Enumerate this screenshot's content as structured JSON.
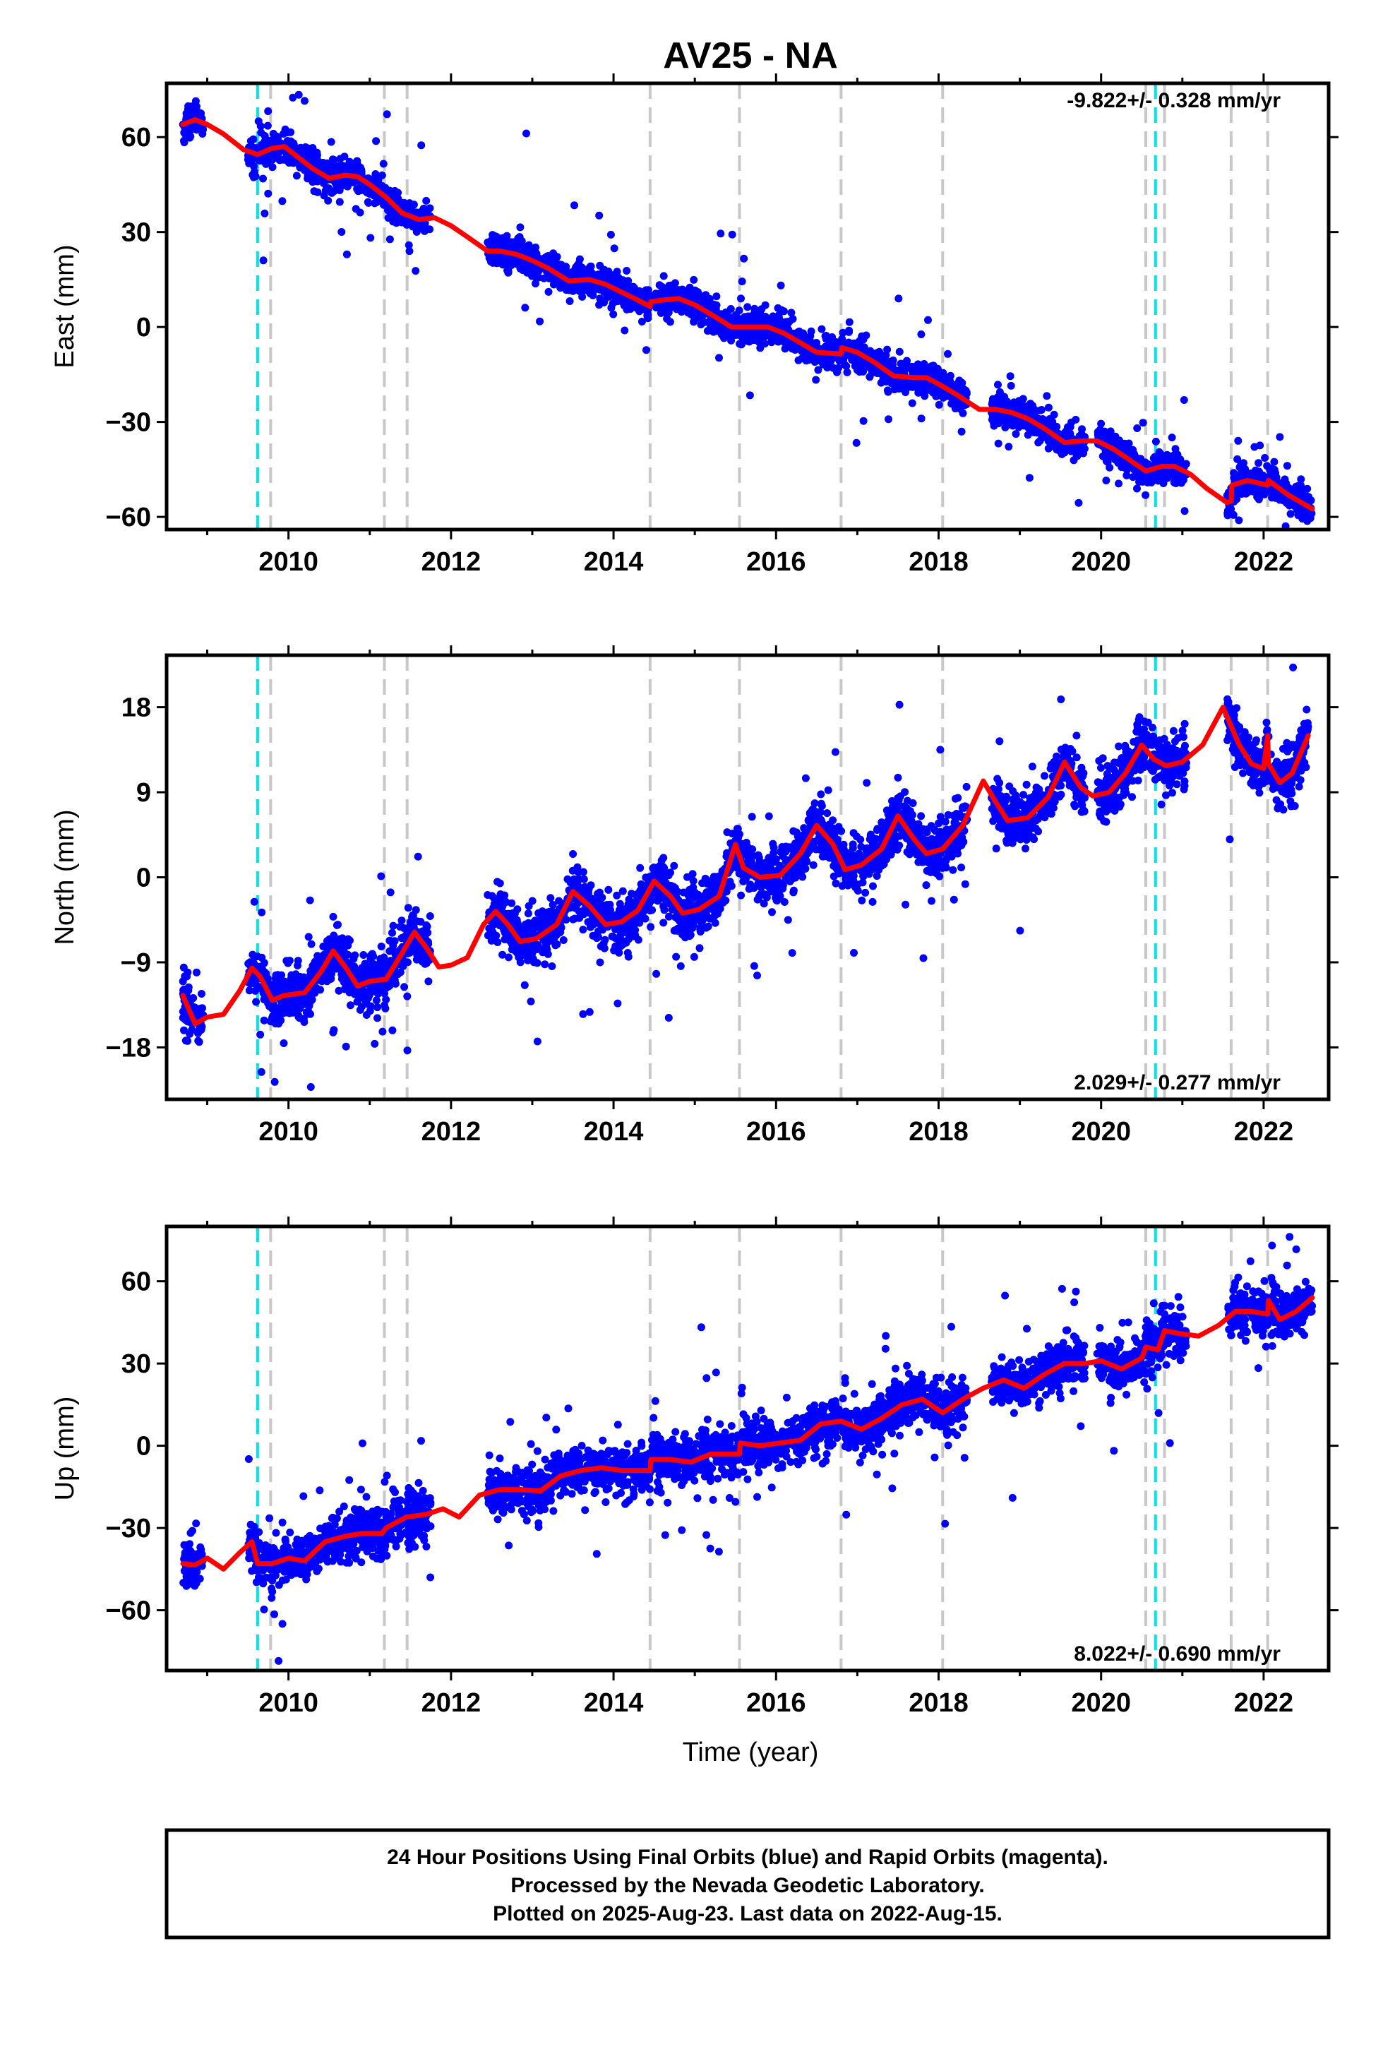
{
  "chart_data": {
    "type": "scatter",
    "title": "AV25 - NA",
    "xlabel": "Time (year)",
    "xlim": [
      2008.5,
      2022.8
    ],
    "x_ticks": [
      "2010",
      "2012",
      "2014",
      "2016",
      "2018",
      "2020",
      "2022"
    ],
    "colors": {
      "points": "#0000ff",
      "model": "#ff0000",
      "event_grey": "#c8c8c8",
      "event_cyan": "#00e5ee"
    },
    "event_lines": {
      "grey": [
        2009.78,
        2011.18,
        2011.46,
        2014.45,
        2015.55,
        2016.8,
        2018.05,
        2020.55,
        2020.78,
        2021.6,
        2022.05
      ],
      "cyan": [
        2009.62,
        2020.67
      ]
    },
    "panels": [
      {
        "ylabel": "East (mm)",
        "ylim": [
          -64,
          77
        ],
        "yticks": [
          "60",
          "30",
          "0",
          "−30",
          "−60"
        ],
        "ytick_values": [
          60,
          30,
          0,
          -30,
          -60
        ],
        "rate_label": "-9.822+/- 0.328 mm/yr",
        "rate_position": "top-right",
        "model": [
          [
            2008.7,
            64
          ],
          [
            2008.85,
            65.5
          ],
          [
            2009.0,
            64
          ],
          [
            2009.2,
            61
          ],
          [
            2009.45,
            56
          ],
          [
            2009.62,
            54.5
          ],
          [
            2009.8,
            56.5
          ],
          [
            2009.95,
            57
          ],
          [
            2010.1,
            54
          ],
          [
            2010.3,
            50
          ],
          [
            2010.5,
            47
          ],
          [
            2010.7,
            48
          ],
          [
            2010.85,
            47.5
          ],
          [
            2011.0,
            45
          ],
          [
            2011.2,
            41
          ],
          [
            2011.4,
            36
          ],
          [
            2011.6,
            34
          ],
          [
            2011.8,
            34.5
          ],
          [
            2012.0,
            32
          ],
          [
            2012.2,
            28.5
          ],
          [
            2012.45,
            24
          ],
          [
            2012.6,
            24
          ],
          [
            2012.8,
            23
          ],
          [
            2013.0,
            21
          ],
          [
            2013.2,
            18.5
          ],
          [
            2013.45,
            14.5
          ],
          [
            2013.7,
            15
          ],
          [
            2013.9,
            13.5
          ],
          [
            2014.1,
            11
          ],
          [
            2014.3,
            8.5
          ],
          [
            2014.45,
            6.5
          ],
          [
            2014.46,
            8
          ],
          [
            2014.6,
            8.5
          ],
          [
            2014.8,
            9
          ],
          [
            2015.0,
            7
          ],
          [
            2015.2,
            4
          ],
          [
            2015.45,
            0
          ],
          [
            2015.7,
            0
          ],
          [
            2015.9,
            0
          ],
          [
            2016.1,
            -2
          ],
          [
            2016.3,
            -5
          ],
          [
            2016.5,
            -8
          ],
          [
            2016.8,
            -8.5
          ],
          [
            2016.81,
            -6.5
          ],
          [
            2017.0,
            -8
          ],
          [
            2017.2,
            -11
          ],
          [
            2017.45,
            -15.5
          ],
          [
            2017.7,
            -16
          ],
          [
            2017.85,
            -16
          ],
          [
            2018.0,
            -18
          ],
          [
            2018.2,
            -21
          ],
          [
            2018.5,
            -26
          ],
          [
            2018.7,
            -26
          ],
          [
            2018.9,
            -27
          ],
          [
            2019.1,
            -29
          ],
          [
            2019.3,
            -32
          ],
          [
            2019.55,
            -36.5
          ],
          [
            2019.75,
            -36
          ],
          [
            2019.95,
            -36
          ],
          [
            2020.15,
            -38.5
          ],
          [
            2020.35,
            -42
          ],
          [
            2020.55,
            -45.5
          ],
          [
            2020.75,
            -44
          ],
          [
            2020.9,
            -44
          ],
          [
            2021.1,
            -46.5
          ],
          [
            2021.3,
            -51
          ],
          [
            2021.55,
            -55.5
          ],
          [
            2021.6,
            -55
          ],
          [
            2021.61,
            -50
          ],
          [
            2021.8,
            -48.5
          ],
          [
            2022.05,
            -50
          ],
          [
            2022.06,
            -48.5
          ],
          [
            2022.3,
            -53
          ],
          [
            2022.6,
            -57.5
          ]
        ],
        "scatter": {
          "count": 3600,
          "spread_mm": 2.4,
          "outliers_mm": 12,
          "seed": 11,
          "gaps": [
            [
              2008.95,
              2009.5
            ],
            [
              2011.75,
              2012.45
            ],
            [
              2018.35,
              2018.65
            ],
            [
              2019.8,
              2019.95
            ],
            [
              2021.05,
              2021.55
            ]
          ]
        }
      },
      {
        "ylabel": "North (mm)",
        "ylim": [
          -23.5,
          23.5
        ],
        "yticks": [
          "18",
          "9",
          "0",
          "−9",
          "−18"
        ],
        "ytick_values": [
          18,
          9,
          0,
          -9,
          -18
        ],
        "rate_label": "2.029+/- 0.277 mm/yr",
        "rate_position": "bottom-right",
        "model": [
          [
            2008.7,
            -12.5
          ],
          [
            2008.85,
            -15.5
          ],
          [
            2009.0,
            -14.8
          ],
          [
            2009.2,
            -14.5
          ],
          [
            2009.4,
            -12
          ],
          [
            2009.55,
            -9.6
          ],
          [
            2009.65,
            -10.5
          ],
          [
            2009.8,
            -13
          ],
          [
            2009.95,
            -12.5
          ],
          [
            2010.2,
            -12.2
          ],
          [
            2010.4,
            -10
          ],
          [
            2010.55,
            -7.8
          ],
          [
            2010.7,
            -9.5
          ],
          [
            2010.85,
            -11.5
          ],
          [
            2011.0,
            -11
          ],
          [
            2011.2,
            -10.8
          ],
          [
            2011.4,
            -8
          ],
          [
            2011.55,
            -5.8
          ],
          [
            2011.7,
            -7.5
          ],
          [
            2011.85,
            -9.5
          ],
          [
            2012.0,
            -9.3
          ],
          [
            2012.2,
            -8.5
          ],
          [
            2012.4,
            -5
          ],
          [
            2012.55,
            -3.6
          ],
          [
            2012.7,
            -5
          ],
          [
            2012.85,
            -6.8
          ],
          [
            2013.05,
            -6.5
          ],
          [
            2013.3,
            -5
          ],
          [
            2013.5,
            -1.5
          ],
          [
            2013.7,
            -3
          ],
          [
            2013.9,
            -5
          ],
          [
            2014.1,
            -4.7
          ],
          [
            2014.3,
            -3.5
          ],
          [
            2014.5,
            -0.4
          ],
          [
            2014.7,
            -2
          ],
          [
            2014.85,
            -3.8
          ],
          [
            2015.05,
            -3.4
          ],
          [
            2015.3,
            -2
          ],
          [
            2015.5,
            3.5
          ],
          [
            2015.6,
            1
          ],
          [
            2015.8,
            0
          ],
          [
            2016.05,
            0.2
          ],
          [
            2016.3,
            2.5
          ],
          [
            2016.5,
            5.5
          ],
          [
            2016.7,
            3.5
          ],
          [
            2016.85,
            0.8
          ],
          [
            2017.05,
            1.3
          ],
          [
            2017.3,
            3
          ],
          [
            2017.5,
            6.5
          ],
          [
            2017.7,
            4
          ],
          [
            2017.85,
            2.5
          ],
          [
            2018.05,
            3
          ],
          [
            2018.3,
            5.5
          ],
          [
            2018.55,
            10.2
          ],
          [
            2018.7,
            8
          ],
          [
            2018.85,
            6
          ],
          [
            2019.1,
            6.3
          ],
          [
            2019.35,
            8.5
          ],
          [
            2019.55,
            12.2
          ],
          [
            2019.75,
            9.5
          ],
          [
            2019.9,
            8.6
          ],
          [
            2020.1,
            9
          ],
          [
            2020.3,
            11
          ],
          [
            2020.5,
            14
          ],
          [
            2020.65,
            12.5
          ],
          [
            2020.8,
            11.8
          ],
          [
            2021.0,
            12.2
          ],
          [
            2021.25,
            14
          ],
          [
            2021.5,
            18
          ],
          [
            2021.7,
            14
          ],
          [
            2021.85,
            12
          ],
          [
            2022.0,
            11.5
          ],
          [
            2022.05,
            15
          ],
          [
            2022.06,
            12
          ],
          [
            2022.2,
            10
          ],
          [
            2022.35,
            11
          ],
          [
            2022.55,
            15
          ]
        ],
        "scatter": {
          "count": 3600,
          "spread_mm": 1.4,
          "outliers_mm": 6,
          "seed": 23,
          "gaps": [
            [
              2008.95,
              2009.5
            ],
            [
              2011.75,
              2012.45
            ],
            [
              2018.35,
              2018.65
            ],
            [
              2019.8,
              2019.95
            ],
            [
              2021.05,
              2021.55
            ]
          ]
        }
      },
      {
        "ylabel": "Up (mm)",
        "ylim": [
          -82,
          80
        ],
        "yticks": [
          "60",
          "30",
          "0",
          "−30",
          "−60"
        ],
        "ytick_values": [
          60,
          30,
          0,
          -30,
          -60
        ],
        "rate_label": "8.022+/- 0.690 mm/yr",
        "rate_position": "bottom-right",
        "model": [
          [
            2008.7,
            -43
          ],
          [
            2008.85,
            -43.5
          ],
          [
            2009.0,
            -41
          ],
          [
            2009.2,
            -45
          ],
          [
            2009.4,
            -39
          ],
          [
            2009.55,
            -35
          ],
          [
            2009.62,
            -43
          ],
          [
            2009.8,
            -43
          ],
          [
            2010.0,
            -41
          ],
          [
            2010.2,
            -42
          ],
          [
            2010.45,
            -35
          ],
          [
            2010.7,
            -33
          ],
          [
            2010.9,
            -32
          ],
          [
            2011.15,
            -32
          ],
          [
            2011.2,
            -30
          ],
          [
            2011.45,
            -26
          ],
          [
            2011.7,
            -25
          ],
          [
            2011.9,
            -23
          ],
          [
            2012.1,
            -26
          ],
          [
            2012.35,
            -18
          ],
          [
            2012.6,
            -16
          ],
          [
            2012.85,
            -16
          ],
          [
            2013.1,
            -16.5
          ],
          [
            2013.35,
            -11
          ],
          [
            2013.6,
            -9
          ],
          [
            2013.85,
            -8
          ],
          [
            2014.1,
            -9
          ],
          [
            2014.45,
            -9
          ],
          [
            2014.46,
            -5
          ],
          [
            2014.7,
            -5
          ],
          [
            2014.95,
            -6
          ],
          [
            2015.2,
            -3
          ],
          [
            2015.55,
            -3
          ],
          [
            2015.56,
            1
          ],
          [
            2015.8,
            0
          ],
          [
            2016.05,
            1
          ],
          [
            2016.3,
            2
          ],
          [
            2016.55,
            8
          ],
          [
            2016.8,
            9
          ],
          [
            2017.05,
            6
          ],
          [
            2017.3,
            10
          ],
          [
            2017.55,
            15
          ],
          [
            2017.8,
            17
          ],
          [
            2018.05,
            12
          ],
          [
            2018.3,
            17
          ],
          [
            2018.55,
            21
          ],
          [
            2018.8,
            24
          ],
          [
            2019.05,
            21
          ],
          [
            2019.3,
            26
          ],
          [
            2019.55,
            30
          ],
          [
            2019.8,
            30
          ],
          [
            2020.0,
            31
          ],
          [
            2020.25,
            28
          ],
          [
            2020.5,
            32
          ],
          [
            2020.55,
            36
          ],
          [
            2020.7,
            35
          ],
          [
            2020.78,
            42
          ],
          [
            2020.95,
            41
          ],
          [
            2021.2,
            40
          ],
          [
            2021.45,
            44
          ],
          [
            2021.65,
            49
          ],
          [
            2021.85,
            49
          ],
          [
            2022.05,
            48
          ],
          [
            2022.06,
            53
          ],
          [
            2022.2,
            46
          ],
          [
            2022.4,
            49
          ],
          [
            2022.6,
            54
          ]
        ],
        "scatter": {
          "count": 3600,
          "spread_mm": 4.2,
          "outliers_mm": 18,
          "seed": 37,
          "gaps": [
            [
              2008.95,
              2009.5
            ],
            [
              2011.75,
              2012.45
            ],
            [
              2018.35,
              2018.65
            ],
            [
              2019.8,
              2019.95
            ],
            [
              2021.05,
              2021.55
            ]
          ]
        }
      }
    ]
  },
  "footer": {
    "line1": "24 Hour Positions Using Final Orbits (blue) and Rapid Orbits (magenta).",
    "line2": "Processed by the Nevada Geodetic Laboratory.",
    "line3": "Plotted on 2025-Aug-23. Last data on 2022-Aug-15."
  }
}
